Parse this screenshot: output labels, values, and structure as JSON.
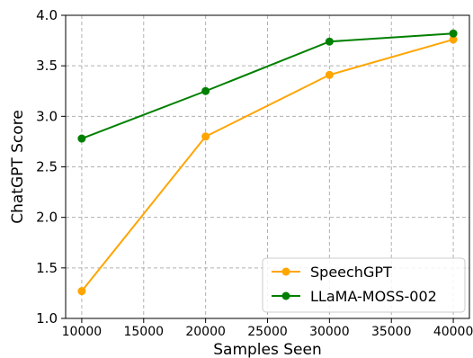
{
  "chart_data": {
    "type": "line",
    "title": "",
    "xlabel": "Samples Seen",
    "ylabel": "ChatGPT Score",
    "xlim": [
      8700,
      41300
    ],
    "ylim": [
      1.0,
      4.0
    ],
    "x_ticks": [
      10000,
      15000,
      20000,
      25000,
      30000,
      35000,
      40000
    ],
    "y_ticks": [
      1.0,
      1.5,
      2.0,
      2.5,
      3.0,
      3.5,
      4.0
    ],
    "y_tick_labels": [
      "1.0",
      "1.5",
      "2.0",
      "2.5",
      "3.0",
      "3.5",
      "4.0"
    ],
    "grid": true,
    "legend_position": "bottom-right",
    "x": [
      10000,
      20000,
      30000,
      40000
    ],
    "series": [
      {
        "name": "SpeechGPT",
        "color": "#FFA500",
        "values": [
          1.27,
          2.8,
          3.41,
          3.76
        ]
      },
      {
        "name": "LLaMA-MOSS-002",
        "color": "#008000",
        "values": [
          2.78,
          3.25,
          3.74,
          3.82
        ]
      }
    ]
  }
}
